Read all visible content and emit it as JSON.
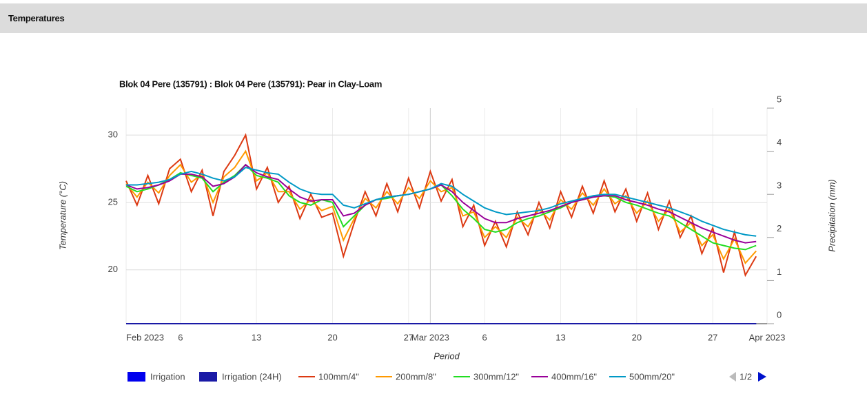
{
  "header": {
    "title": "Temperatures"
  },
  "chart_data": {
    "type": "line",
    "title": "Blok 04 Pere (135791) : Blok 04 Pere (135791): Pear in Clay-Loam",
    "y_label": "Temperature (°C)",
    "y2_label": "Precipitation (mm)",
    "x_label": "Period",
    "legend_page": "1/2",
    "x": [
      "2023-02-01",
      "2023-02-02",
      "2023-02-03",
      "2023-02-04",
      "2023-02-05",
      "2023-02-06",
      "2023-02-07",
      "2023-02-08",
      "2023-02-09",
      "2023-02-10",
      "2023-02-11",
      "2023-02-12",
      "2023-02-13",
      "2023-02-14",
      "2023-02-15",
      "2023-02-16",
      "2023-02-17",
      "2023-02-18",
      "2023-02-19",
      "2023-02-20",
      "2023-02-21",
      "2023-02-22",
      "2023-02-23",
      "2023-02-24",
      "2023-02-25",
      "2023-02-26",
      "2023-02-27",
      "2023-02-28",
      "2023-03-01",
      "2023-03-02",
      "2023-03-03",
      "2023-03-04",
      "2023-03-05",
      "2023-03-06",
      "2023-03-07",
      "2023-03-08",
      "2023-03-09",
      "2023-03-10",
      "2023-03-11",
      "2023-03-12",
      "2023-03-13",
      "2023-03-14",
      "2023-03-15",
      "2023-03-16",
      "2023-03-17",
      "2023-03-18",
      "2023-03-19",
      "2023-03-20",
      "2023-03-21",
      "2023-03-22",
      "2023-03-23",
      "2023-03-24",
      "2023-03-25",
      "2023-03-26",
      "2023-03-27",
      "2023-03-28",
      "2023-03-29",
      "2023-03-30",
      "2023-03-31"
    ],
    "xlim": [
      "2023-02-01",
      "2023-04-01"
    ],
    "xticks": [
      {
        "value": "2023-02-01",
        "label": "Feb 2023"
      },
      {
        "value": "2023-02-06",
        "label": "6"
      },
      {
        "value": "2023-02-13",
        "label": "13"
      },
      {
        "value": "2023-02-20",
        "label": "20"
      },
      {
        "value": "2023-02-27",
        "label": "27"
      },
      {
        "value": "2023-03-01",
        "label": "Mar 2023"
      },
      {
        "value": "2023-03-06",
        "label": "6"
      },
      {
        "value": "2023-03-13",
        "label": "13"
      },
      {
        "value": "2023-03-20",
        "label": "20"
      },
      {
        "value": "2023-03-27",
        "label": "27"
      },
      {
        "value": "2023-04-01",
        "label": "Apr 2023"
      }
    ],
    "ylim": [
      16,
      32
    ],
    "yticks": [
      20,
      25,
      30
    ],
    "y2lim": [
      0,
      5
    ],
    "y2ticks": [
      0,
      1,
      2,
      3,
      4,
      5
    ],
    "grid": true,
    "series": [
      {
        "name": "Irrigation",
        "color": "#0000ee",
        "kind": "bar",
        "axis": "y2",
        "values": [
          0,
          0,
          0,
          0,
          0,
          0,
          0,
          0,
          0,
          0,
          0,
          0,
          0,
          0,
          0,
          0,
          0,
          0,
          0,
          0,
          0,
          0,
          0,
          0,
          0,
          0,
          0,
          0,
          0,
          0,
          0,
          0,
          0,
          0,
          0,
          0,
          0,
          0,
          0,
          0,
          0,
          0,
          0,
          0,
          0,
          0,
          0,
          0,
          0,
          0,
          0,
          0,
          0,
          0,
          0,
          0,
          0,
          0,
          0
        ]
      },
      {
        "name": "Irrigation (24H)",
        "color": "#1a1aa6",
        "kind": "bar",
        "axis": "y2",
        "values": [
          0,
          0,
          0,
          0,
          0,
          0,
          0,
          0,
          0,
          0,
          0,
          0,
          0,
          0,
          0,
          0,
          0,
          0,
          0,
          0,
          0,
          0,
          0,
          0,
          0,
          0,
          0,
          0,
          0,
          0,
          0,
          0,
          0,
          0,
          0,
          0,
          0,
          0,
          0,
          0,
          0,
          0,
          0,
          0,
          0,
          0,
          0,
          0,
          0,
          0,
          0,
          0,
          0,
          0,
          0,
          0,
          0,
          0,
          0
        ]
      },
      {
        "name": "100mm/4\"",
        "color": "#dc3912",
        "values": [
          26.6,
          24.8,
          27.0,
          24.9,
          27.5,
          28.2,
          25.8,
          27.4,
          24.0,
          27.3,
          28.5,
          30.0,
          26.0,
          27.6,
          25.0,
          26.2,
          23.8,
          25.6,
          23.9,
          24.2,
          21.0,
          23.5,
          25.8,
          24.0,
          26.4,
          24.3,
          26.8,
          24.6,
          27.3,
          25.1,
          26.7,
          23.2,
          24.8,
          21.8,
          23.6,
          21.7,
          24.3,
          22.6,
          25.0,
          23.1,
          25.8,
          23.9,
          26.2,
          24.2,
          26.6,
          24.3,
          26.0,
          23.6,
          25.7,
          23.0,
          25.1,
          22.4,
          24.0,
          21.2,
          23.1,
          19.8,
          22.8,
          19.6,
          21.0
        ]
      },
      {
        "name": "200mm/8\"",
        "color": "#ff9900",
        "values": [
          26.4,
          25.4,
          26.5,
          25.7,
          27.0,
          27.8,
          26.5,
          27.1,
          25.0,
          26.9,
          27.6,
          28.8,
          26.6,
          27.2,
          25.8,
          25.8,
          24.5,
          25.2,
          24.4,
          24.7,
          22.2,
          23.8,
          25.3,
          24.6,
          25.8,
          24.9,
          26.1,
          25.3,
          26.6,
          25.8,
          26.1,
          24.0,
          24.3,
          22.4,
          23.2,
          22.4,
          23.9,
          23.2,
          24.5,
          23.7,
          25.2,
          24.5,
          25.7,
          24.8,
          26.0,
          24.9,
          25.5,
          24.2,
          25.1,
          23.6,
          24.5,
          22.8,
          23.5,
          21.8,
          22.6,
          20.8,
          22.3,
          20.5,
          21.4
        ]
      },
      {
        "name": "300mm/12\"",
        "color": "#22dd22",
        "values": [
          26.2,
          25.8,
          26.0,
          26.3,
          26.7,
          27.2,
          27.0,
          26.8,
          25.8,
          26.5,
          27.0,
          27.8,
          27.0,
          26.8,
          26.5,
          25.5,
          25.0,
          24.8,
          25.2,
          25.0,
          23.2,
          24.0,
          24.8,
          25.2,
          25.3,
          25.5,
          25.6,
          25.8,
          26.0,
          26.3,
          25.5,
          24.5,
          23.8,
          23.0,
          22.8,
          23.0,
          23.5,
          23.8,
          24.0,
          24.3,
          24.6,
          25.0,
          25.2,
          25.4,
          25.5,
          25.4,
          25.0,
          24.8,
          24.5,
          24.2,
          24.0,
          23.5,
          23.0,
          22.5,
          22.0,
          21.8,
          21.6,
          21.5,
          21.8
        ]
      },
      {
        "name": "400mm/16\"",
        "color": "#990099",
        "values": [
          26.3,
          26.0,
          26.1,
          26.3,
          26.6,
          27.1,
          27.1,
          26.9,
          26.2,
          26.4,
          26.9,
          27.8,
          27.2,
          26.9,
          26.7,
          26.0,
          25.4,
          25.1,
          25.2,
          25.2,
          24.0,
          24.2,
          24.8,
          25.2,
          25.4,
          25.5,
          25.6,
          25.8,
          26.0,
          26.3,
          25.8,
          25.0,
          24.4,
          23.8,
          23.5,
          23.5,
          23.8,
          24.0,
          24.2,
          24.4,
          24.7,
          25.0,
          25.2,
          25.4,
          25.5,
          25.5,
          25.2,
          25.0,
          24.8,
          24.5,
          24.3,
          23.9,
          23.5,
          23.1,
          22.8,
          22.5,
          22.2,
          22.0,
          22.1
        ]
      },
      {
        "name": "500mm/20\"",
        "color": "#0099c6",
        "values": [
          26.3,
          26.3,
          26.4,
          26.5,
          26.7,
          27.1,
          27.3,
          27.1,
          26.8,
          26.6,
          26.9,
          27.6,
          27.4,
          27.2,
          27.1,
          26.5,
          26.0,
          25.7,
          25.6,
          25.6,
          24.8,
          24.6,
          24.9,
          25.2,
          25.4,
          25.5,
          25.6,
          25.8,
          26.0,
          26.4,
          26.2,
          25.6,
          25.1,
          24.6,
          24.3,
          24.1,
          24.2,
          24.3,
          24.4,
          24.6,
          24.9,
          25.1,
          25.3,
          25.5,
          25.6,
          25.6,
          25.4,
          25.2,
          25.0,
          24.8,
          24.6,
          24.3,
          24.0,
          23.6,
          23.3,
          23.0,
          22.8,
          22.6,
          22.5
        ]
      }
    ]
  }
}
